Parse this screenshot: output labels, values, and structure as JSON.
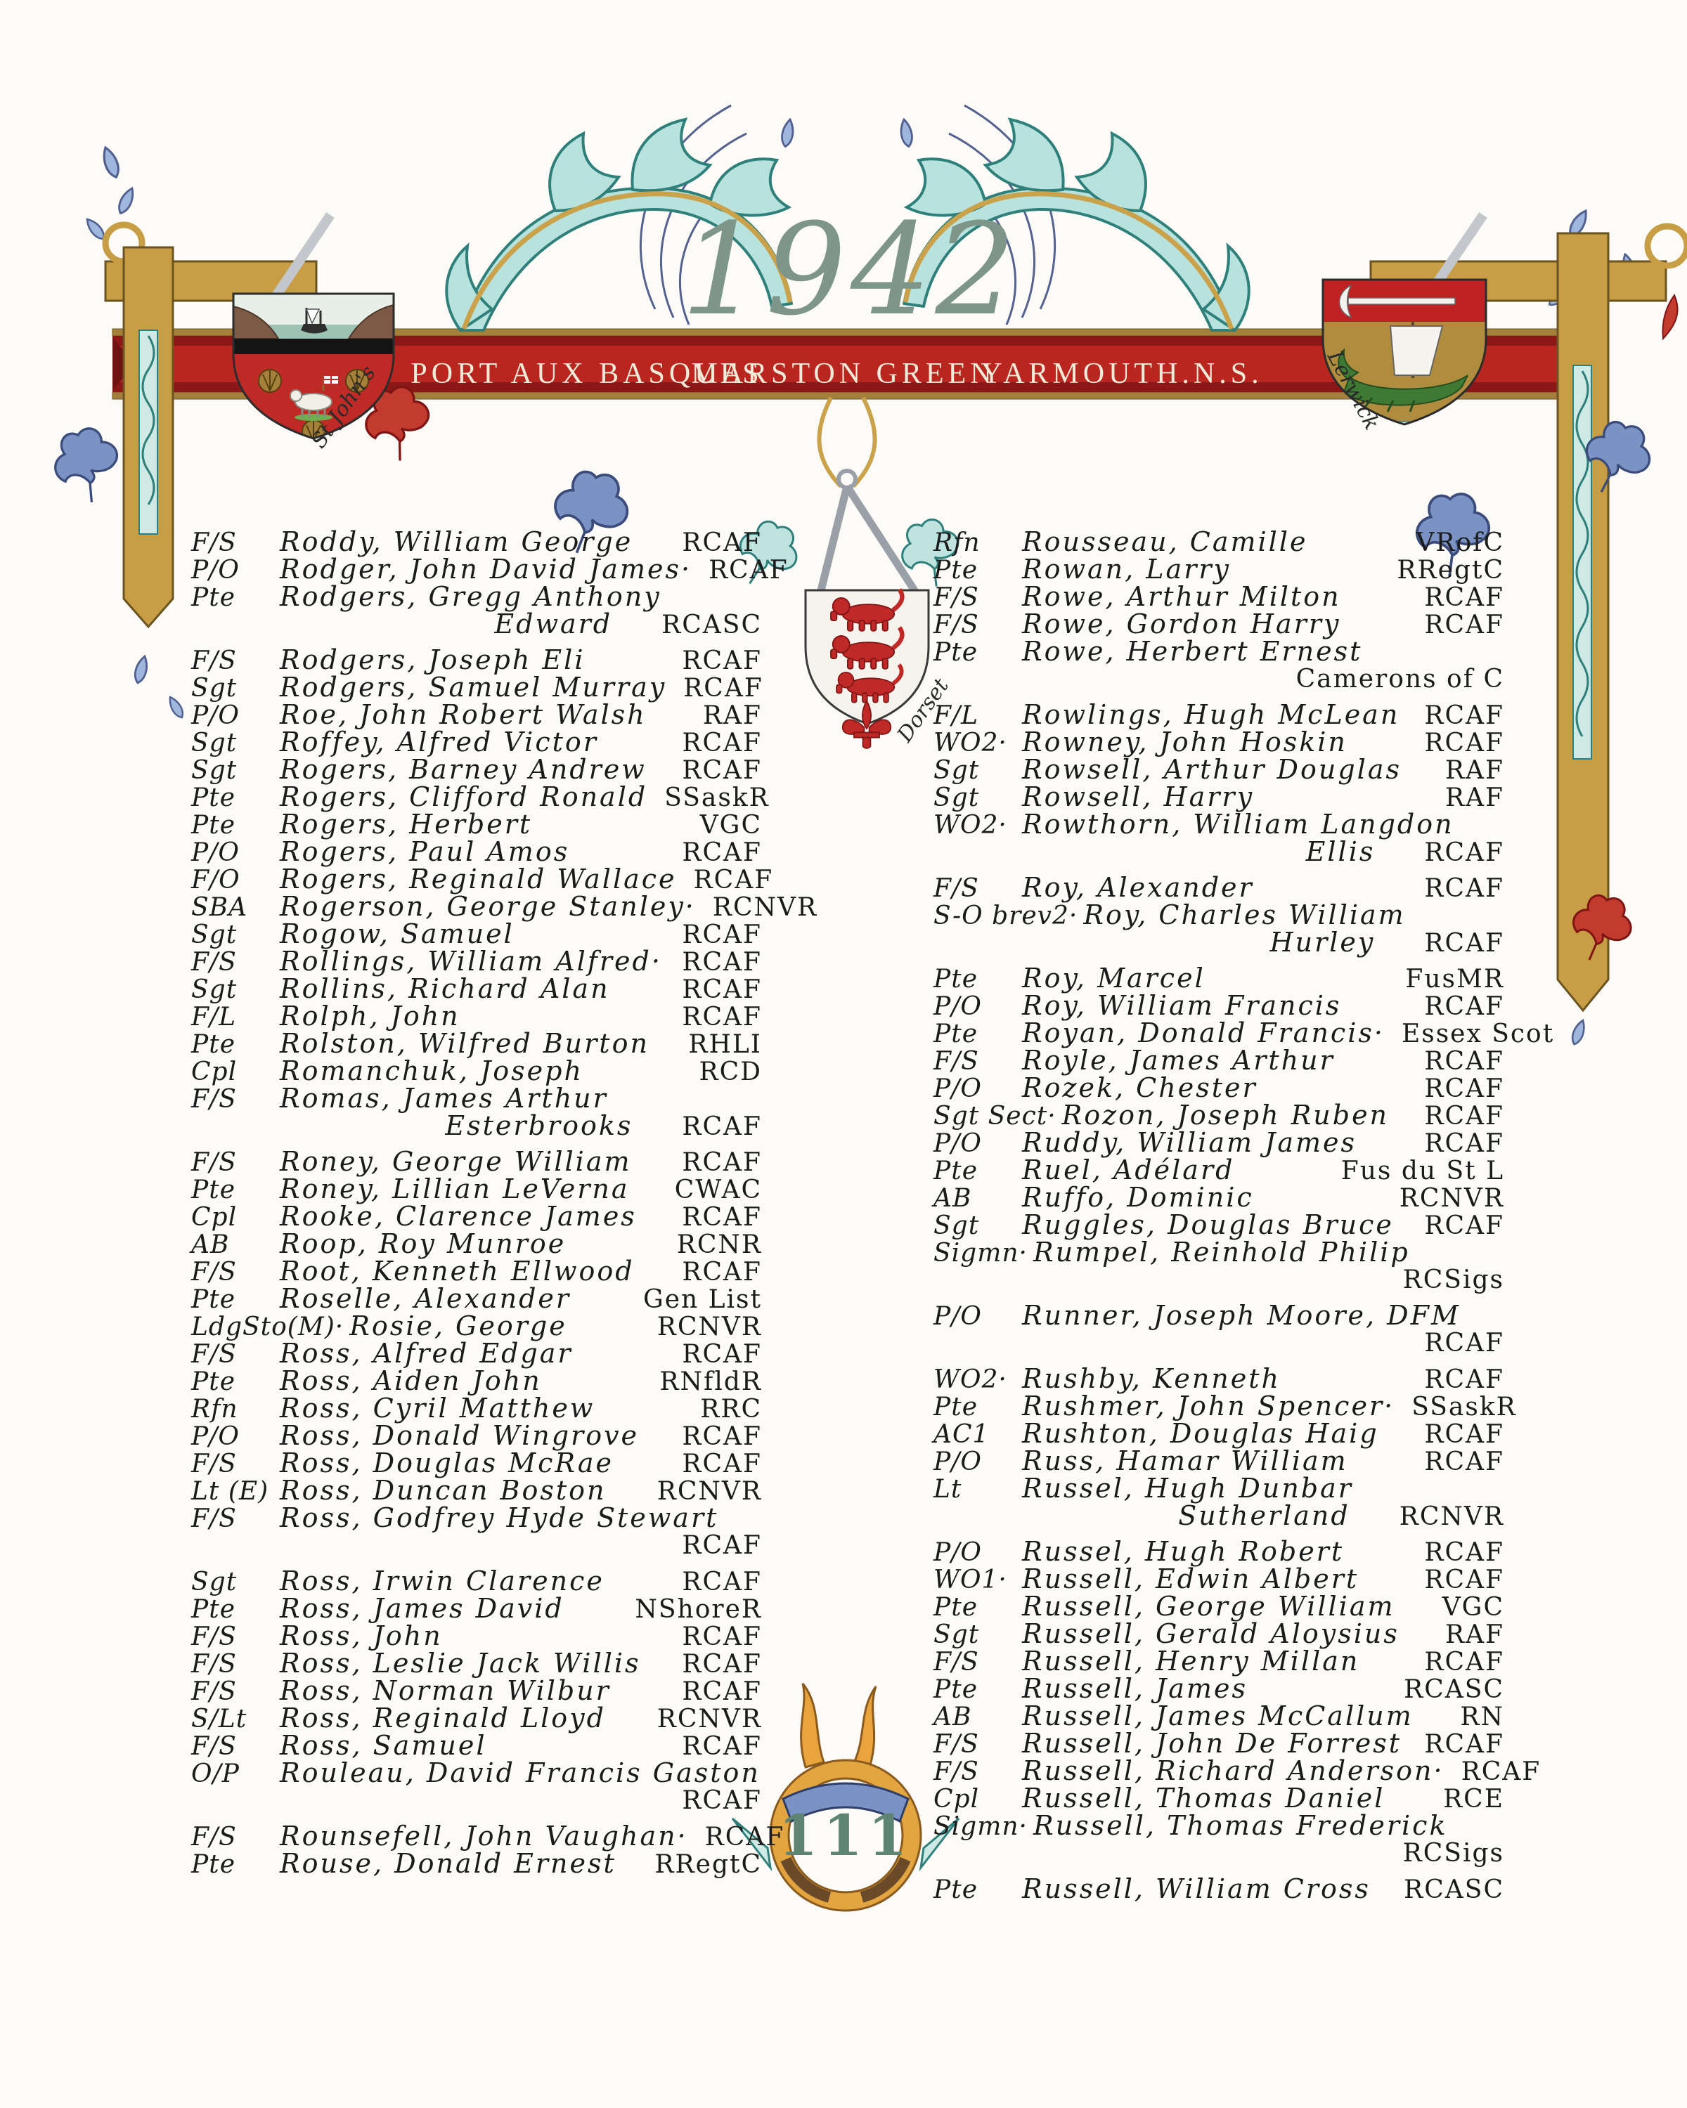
{
  "page": {
    "year": "1942",
    "banner": [
      "PORT AUX BASQUES",
      "MARSTON GREEN",
      "YARMOUTH.N.S."
    ],
    "page_number": "111",
    "shields": {
      "left": "St John's",
      "center": "Dorset",
      "right": "Lerwick"
    }
  },
  "columns": {
    "left": [
      {
        "rank": "F/S",
        "name": "Roddy, William George",
        "unit": "RCAF"
      },
      {
        "rank": "P/O",
        "name": "Rodger, John David James·",
        "unit": "RCAF"
      },
      {
        "rank": "Pte",
        "name": "Rodgers, Gregg Anthony",
        "cont": {
          "name": "Edward",
          "unit": "RCASC"
        }
      },
      {
        "rank": "F/S",
        "name": "Rodgers, Joseph Eli",
        "unit": "RCAF"
      },
      {
        "rank": "Sgt",
        "name": "Rodgers, Samuel Murray",
        "unit": "RCAF"
      },
      {
        "rank": "P/O",
        "name": "Roe, John Robert Walsh",
        "unit": "RAF"
      },
      {
        "rank": "Sgt",
        "name": "Roffey, Alfred Victor",
        "unit": "RCAF"
      },
      {
        "rank": "Sgt",
        "name": "Rogers, Barney Andrew",
        "unit": "RCAF"
      },
      {
        "rank": "Pte",
        "name": "Rogers, Clifford Ronald",
        "unit": "SSaskR"
      },
      {
        "rank": "Pte",
        "name": "Rogers, Herbert",
        "unit": "VGC"
      },
      {
        "rank": "P/O",
        "name": "Rogers, Paul Amos",
        "unit": "RCAF"
      },
      {
        "rank": "F/O",
        "name": "Rogers, Reginald Wallace",
        "unit": "RCAF"
      },
      {
        "rank": "SBA",
        "name": "Rogerson, George Stanley·",
        "unit": "RCNVR"
      },
      {
        "rank": "Sgt",
        "name": "Rogow, Samuel",
        "unit": "RCAF"
      },
      {
        "rank": "F/S",
        "name": "Rollings, William Alfred·",
        "unit": "RCAF"
      },
      {
        "rank": "Sgt",
        "name": "Rollins, Richard Alan",
        "unit": "RCAF"
      },
      {
        "rank": "F/L",
        "name": "Rolph, John",
        "unit": "RCAF"
      },
      {
        "rank": "Pte",
        "name": "Rolston, Wilfred Burton",
        "unit": "RHLI"
      },
      {
        "rank": "Cpl",
        "name": "Romanchuk, Joseph",
        "unit": "RCD"
      },
      {
        "rank": "F/S",
        "name": "Romas, James Arthur",
        "cont": {
          "name": "Esterbrooks",
          "unit": "RCAF"
        }
      },
      {
        "rank": "F/S",
        "name": "Roney, George William",
        "unit": "RCAF"
      },
      {
        "rank": "Pte",
        "name": "Roney, Lillian LeVerna",
        "unit": "CWAC"
      },
      {
        "rank": "Cpl",
        "name": "Rooke, Clarence James",
        "unit": "RCAF"
      },
      {
        "rank": "AB",
        "name": "Roop, Roy Munroe",
        "unit": "RCNR"
      },
      {
        "rank": "F/S",
        "name": "Root, Kenneth Ellwood",
        "unit": "RCAF"
      },
      {
        "rank": "Pte",
        "name": "Roselle, Alexander",
        "unit": "Gen List"
      },
      {
        "rank": "LdgSto(M)·",
        "name": "Rosie, George",
        "unit": "RCNVR"
      },
      {
        "rank": "F/S",
        "name": "Ross, Alfred Edgar",
        "unit": "RCAF"
      },
      {
        "rank": "Pte",
        "name": "Ross, Aiden John",
        "unit": "RNfldR"
      },
      {
        "rank": "Rfn",
        "name": "Ross, Cyril Matthew",
        "unit": "RRC"
      },
      {
        "rank": "P/O",
        "name": "Ross, Donald Wingrove",
        "unit": "RCAF"
      },
      {
        "rank": "F/S",
        "name": "Ross, Douglas McRae",
        "unit": "RCAF"
      },
      {
        "rank": "Lt (E)",
        "name": "Ross, Duncan Boston",
        "unit": "RCNVR"
      },
      {
        "rank": "F/S",
        "name": "Ross, Godfrey Hyde Stewart",
        "cont": {
          "name": "",
          "unit": "RCAF"
        }
      },
      {
        "rank": "Sgt",
        "name": "Ross, Irwin Clarence",
        "unit": "RCAF"
      },
      {
        "rank": "Pte",
        "name": "Ross, James David",
        "unit": "NShoreR"
      },
      {
        "rank": "F/S",
        "name": "Ross, John",
        "unit": "RCAF"
      },
      {
        "rank": "F/S",
        "name": "Ross, Leslie Jack Willis",
        "unit": "RCAF"
      },
      {
        "rank": "F/S",
        "name": "Ross, Norman Wilbur",
        "unit": "RCAF"
      },
      {
        "rank": "S/Lt",
        "name": "Ross, Reginald Lloyd",
        "unit": "RCNVR"
      },
      {
        "rank": "F/S",
        "name": "Ross, Samuel",
        "unit": "RCAF"
      },
      {
        "rank": "O/P",
        "name": "Rouleau, David Francis Gaston",
        "cont": {
          "name": "",
          "unit": "RCAF"
        }
      },
      {
        "rank": "F/S",
        "name": "Rounsefell, John Vaughan·",
        "unit": "RCAF"
      },
      {
        "rank": "Pte",
        "name": "Rouse, Donald Ernest",
        "unit": "RRegtC"
      }
    ],
    "right": [
      {
        "rank": "Rfn",
        "name": "Rousseau, Camille",
        "unit": "VRofC"
      },
      {
        "rank": "Pte",
        "name": "Rowan, Larry",
        "unit": "RRegtC"
      },
      {
        "rank": "F/S",
        "name": "Rowe, Arthur Milton",
        "unit": "RCAF"
      },
      {
        "rank": "F/S",
        "name": "Rowe, Gordon Harry",
        "unit": "RCAF"
      },
      {
        "rank": "Pte",
        "name": "Rowe, Herbert Ernest",
        "cont": {
          "name": "",
          "unit": "Camerons of C"
        }
      },
      {
        "rank": "F/L",
        "name": "Rowlings, Hugh McLean",
        "unit": "RCAF"
      },
      {
        "rank": "WO2·",
        "name": "Rowney, John Hoskin",
        "unit": "RCAF"
      },
      {
        "rank": "Sgt",
        "name": "Rowsell, Arthur Douglas",
        "unit": "RAF"
      },
      {
        "rank": "Sgt",
        "name": "Rowsell, Harry",
        "unit": "RAF"
      },
      {
        "rank": "WO2·",
        "name": "Rowthorn, William Langdon",
        "cont": {
          "name": "Ellis",
          "unit": "RCAF"
        }
      },
      {
        "rank": "F/S",
        "name": "Roy, Alexander",
        "unit": "RCAF"
      },
      {
        "rank": "S-O brev2·",
        "name": "Roy, Charles William",
        "cont": {
          "name": "Hurley",
          "unit": "RCAF"
        }
      },
      {
        "rank": "Pte",
        "name": "Roy, Marcel",
        "unit": "FusMR"
      },
      {
        "rank": "P/O",
        "name": "Roy, William Francis",
        "unit": "RCAF"
      },
      {
        "rank": "Pte",
        "name": "Royan, Donald Francis·",
        "unit": "Essex Scot"
      },
      {
        "rank": "F/S",
        "name": "Royle, James Arthur",
        "unit": "RCAF"
      },
      {
        "rank": "P/O",
        "name": "Rozek, Chester",
        "unit": "RCAF"
      },
      {
        "rank": "Sgt Sect·",
        "name": "Rozon, Joseph Ruben",
        "unit": "RCAF"
      },
      {
        "rank": "P/O",
        "name": "Ruddy, William James",
        "unit": "RCAF"
      },
      {
        "rank": "Pte",
        "name": "Ruel, Adélard",
        "unit": "Fus du St L"
      },
      {
        "rank": "AB",
        "name": "Ruffo, Dominic",
        "unit": "RCNVR"
      },
      {
        "rank": "Sgt",
        "name": "Ruggles, Douglas Bruce",
        "unit": "RCAF"
      },
      {
        "rank": "Sigmn·",
        "name": "Rumpel, Reinhold Philip",
        "cont": {
          "name": "",
          "unit": "RCSigs"
        }
      },
      {
        "rank": "P/O",
        "name": "Runner, Joseph Moore, DFM",
        "cont": {
          "name": "",
          "unit": "RCAF"
        }
      },
      {
        "rank": "WO2·",
        "name": "Rushby, Kenneth",
        "unit": "RCAF"
      },
      {
        "rank": "Pte",
        "name": "Rushmer, John Spencer·",
        "unit": "SSaskR"
      },
      {
        "rank": "AC1",
        "name": "Rushton, Douglas Haig",
        "unit": "RCAF"
      },
      {
        "rank": "P/O",
        "name": "Russ, Hamar William",
        "unit": "RCAF"
      },
      {
        "rank": "Lt",
        "name": "Russel, Hugh Dunbar",
        "cont": {
          "name": "Sutherland",
          "unit": "RCNVR"
        }
      },
      {
        "rank": "P/O",
        "name": "Russel, Hugh Robert",
        "unit": "RCAF"
      },
      {
        "rank": "WO1·",
        "name": "Russell, Edwin Albert",
        "unit": "RCAF"
      },
      {
        "rank": "Pte",
        "name": "Russell, George William",
        "unit": "VGC"
      },
      {
        "rank": "Sgt",
        "name": "Russell, Gerald Aloysius",
        "unit": "RAF"
      },
      {
        "rank": "F/S",
        "name": "Russell, Henry Millan",
        "unit": "RCAF"
      },
      {
        "rank": "Pte",
        "name": "Russell, James",
        "unit": "RCASC"
      },
      {
        "rank": "AB",
        "name": "Russell, James McCallum",
        "unit": "RN"
      },
      {
        "rank": "F/S",
        "name": "Russell, John De Forrest",
        "unit": "RCAF"
      },
      {
        "rank": "F/S",
        "name": "Russell, Richard Anderson·",
        "unit": "RCAF"
      },
      {
        "rank": "Cpl",
        "name": "Russell, Thomas Daniel",
        "unit": "RCE"
      },
      {
        "rank": "Sigmn·",
        "name": "Russell, Thomas Frederick",
        "cont": {
          "name": "",
          "unit": "RCSigs"
        }
      },
      {
        "rank": "Pte",
        "name": "Russell, William Cross",
        "unit": "RCASC"
      }
    ]
  }
}
